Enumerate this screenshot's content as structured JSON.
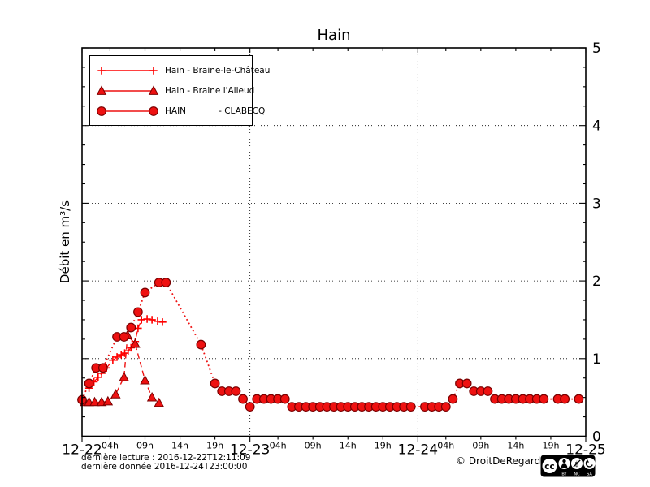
{
  "footer": {
    "line1": "dernière lecture : 2016-12-22T12:11:09",
    "line2": "dernière donnée  2016-12-24T23:00:00",
    "copyright": "© DroitDeRegard.be",
    "license": {
      "cc": "cc",
      "by": "BY",
      "nc": "NC",
      "sa": "SA",
      "nc_glyph": "$"
    }
  },
  "chart_data": {
    "type": "line",
    "title": "Hain",
    "xlabel": "",
    "ylabel": "Débit en m³/s",
    "ylim": [
      0,
      5
    ],
    "y_major_ticks": [
      0,
      1,
      2,
      3,
      4,
      5
    ],
    "y_minor_tick_step": 0.25,
    "grid": {
      "h_lines": [
        1,
        2,
        3,
        4
      ],
      "v_lines_hours": [
        24,
        48
      ]
    },
    "legend_position": "upper-left",
    "x_axis": {
      "total_hours": 72,
      "major_ticks": [
        {
          "hour": 0,
          "label": "12-22"
        },
        {
          "hour": 24,
          "label": "12-23"
        },
        {
          "hour": 48,
          "label": "12-24"
        },
        {
          "hour": 72,
          "label": "12-25"
        }
      ],
      "minor_ticks": [
        {
          "hour": 4,
          "label": "04h"
        },
        {
          "hour": 9,
          "label": "09h"
        },
        {
          "hour": 14,
          "label": "14h"
        },
        {
          "hour": 19,
          "label": "19h"
        },
        {
          "hour": 28,
          "label": "04h"
        },
        {
          "hour": 33,
          "label": "09h"
        },
        {
          "hour": 38,
          "label": "14h"
        },
        {
          "hour": 43,
          "label": "19h"
        },
        {
          "hour": 52,
          "label": "04h"
        },
        {
          "hour": 57,
          "label": "09h"
        },
        {
          "hour": 62,
          "label": "14h"
        },
        {
          "hour": 67,
          "label": "19h"
        }
      ]
    },
    "series": [
      {
        "name": "Hain - Braine-le-Château",
        "marker": "plus",
        "linestyle": "dashed",
        "color": "#ff0000",
        "edge": "#990000",
        "line_width": 1.2,
        "points": [
          [
            1.0,
            0.62
          ],
          [
            1.7,
            0.7
          ],
          [
            2.3,
            0.76
          ],
          [
            2.8,
            0.81
          ],
          [
            3.5,
            0.88
          ],
          [
            4.4,
            0.98
          ],
          [
            5.0,
            1.02
          ],
          [
            5.6,
            1.05
          ],
          [
            6.1,
            1.07
          ],
          [
            6.6,
            1.1
          ],
          [
            7.0,
            1.14
          ],
          [
            7.6,
            1.22
          ],
          [
            8.0,
            1.39
          ],
          [
            8.5,
            1.5
          ],
          [
            9.3,
            1.51
          ],
          [
            10.0,
            1.5
          ],
          [
            10.8,
            1.48
          ],
          [
            11.5,
            1.47
          ]
        ]
      },
      {
        "name": "Hain - Braine l'Alleud",
        "marker": "triangle",
        "linestyle": "dashed",
        "color": "#ee1111",
        "edge": "#7a0000",
        "line_width": 1.4,
        "points": [
          [
            0.4,
            0.44
          ],
          [
            1.0,
            0.44
          ],
          [
            1.8,
            0.44
          ],
          [
            2.8,
            0.44
          ],
          [
            3.7,
            0.45
          ],
          [
            4.8,
            0.54
          ],
          [
            6.0,
            0.76
          ],
          [
            6.5,
            1.3
          ],
          [
            7.6,
            1.19
          ],
          [
            9.0,
            0.72
          ],
          [
            10.0,
            0.5
          ],
          [
            11.0,
            0.43
          ]
        ]
      },
      {
        "name": "HAIN            - CLABECQ",
        "marker": "circle",
        "linestyle": "dotted",
        "color": "#ee1111",
        "edge": "#7a0000",
        "line_width": 1.8,
        "points": [
          [
            0,
            0.47
          ],
          [
            1,
            0.68
          ],
          [
            2,
            0.88
          ],
          [
            3,
            0.88
          ],
          [
            5,
            1.28
          ],
          [
            6,
            1.28
          ],
          [
            7,
            1.4
          ],
          [
            8,
            1.6
          ],
          [
            9,
            1.85
          ],
          [
            11,
            1.98
          ],
          [
            12,
            1.98
          ],
          [
            17,
            1.18
          ],
          [
            19,
            0.68
          ],
          [
            20,
            0.58
          ],
          [
            21,
            0.58
          ],
          [
            22,
            0.58
          ],
          [
            23,
            0.48
          ],
          [
            24,
            0.38
          ],
          [
            25,
            0.48
          ],
          [
            26,
            0.48
          ],
          [
            27,
            0.48
          ],
          [
            28,
            0.48
          ],
          [
            29,
            0.48
          ],
          [
            30,
            0.38
          ],
          [
            31,
            0.38
          ],
          [
            32,
            0.38
          ],
          [
            33,
            0.38
          ],
          [
            34,
            0.38
          ],
          [
            35,
            0.38
          ],
          [
            36,
            0.38
          ],
          [
            37,
            0.38
          ],
          [
            38,
            0.38
          ],
          [
            39,
            0.38
          ],
          [
            40,
            0.38
          ],
          [
            41,
            0.38
          ],
          [
            42,
            0.38
          ],
          [
            43,
            0.38
          ],
          [
            44,
            0.38
          ],
          [
            45,
            0.38
          ],
          [
            46,
            0.38
          ],
          [
            47,
            0.38
          ],
          [
            49,
            0.38
          ],
          [
            50,
            0.38
          ],
          [
            51,
            0.38
          ],
          [
            52,
            0.38
          ],
          [
            53,
            0.48
          ],
          [
            54,
            0.68
          ],
          [
            55,
            0.68
          ],
          [
            56,
            0.58
          ],
          [
            57,
            0.58
          ],
          [
            58,
            0.58
          ],
          [
            59,
            0.48
          ],
          [
            60,
            0.48
          ],
          [
            61,
            0.48
          ],
          [
            62,
            0.48
          ],
          [
            63,
            0.48
          ],
          [
            64,
            0.48
          ],
          [
            65,
            0.48
          ],
          [
            66,
            0.48
          ],
          [
            68,
            0.48
          ],
          [
            69,
            0.48
          ],
          [
            71,
            0.48
          ]
        ]
      }
    ]
  }
}
